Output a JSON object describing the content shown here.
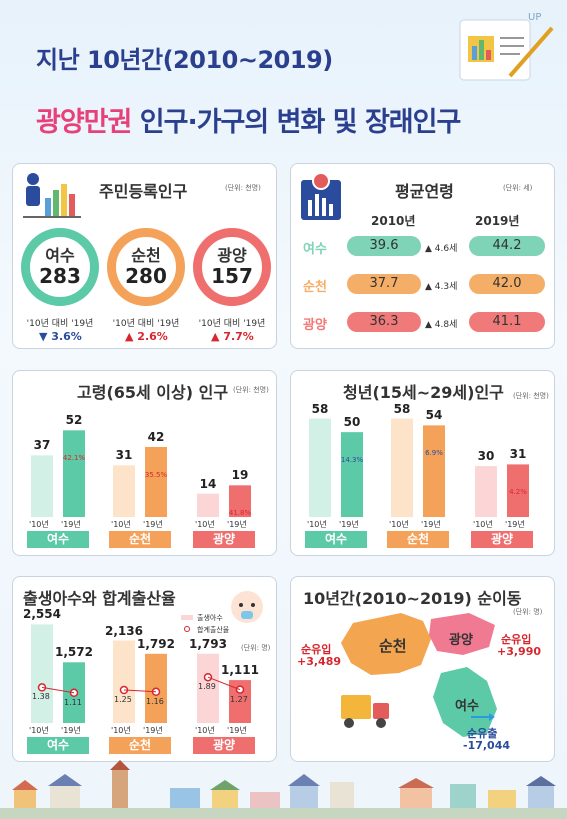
{
  "header": {
    "title_line1": "지난 10년간(2010~2019)",
    "title_line2_highlight": "광양만권",
    "title_line2_rest": " 인구·가구의 변화 및 장래인구"
  },
  "registered_population": {
    "title": "주민등록인구",
    "unit": "(단위: 천명)",
    "cities": [
      {
        "name": "여수",
        "value": "283",
        "compare": "'10년 대비 '19년",
        "change": "▼ 3.6%",
        "color": "#5cc9a7"
      },
      {
        "name": "순천",
        "value": "280",
        "compare": "'10년 대비 '19년",
        "change": "▲ 2.6%",
        "color": "#f4a259"
      },
      {
        "name": "광양",
        "value": "157",
        "compare": "'10년 대비 '19년",
        "change": "▲ 7.7%",
        "color": "#ef6f6f"
      }
    ]
  },
  "average_age": {
    "title": "평균연령",
    "unit": "(단위: 세)",
    "year1": "2010년",
    "year2": "2019년",
    "rows": [
      {
        "name": "여수",
        "v2010": "39.6",
        "change": "▲ 4.6세",
        "v2019": "44.2",
        "color": "#7fd3b6"
      },
      {
        "name": "순천",
        "v2010": "37.7",
        "change": "▲ 4.3세",
        "v2019": "42.0",
        "color": "#f5ae67"
      },
      {
        "name": "광양",
        "v2010": "36.3",
        "change": "▲ 4.8세",
        "v2019": "41.1",
        "color": "#f07a7a"
      }
    ]
  },
  "chart_data": [
    {
      "type": "bar",
      "title": "고령(65세 이상) 인구",
      "unit": "(단위: 천명)",
      "categories": [
        "여수",
        "순천",
        "광양"
      ],
      "series": [
        {
          "name": "'10년",
          "values": [
            37,
            31,
            14
          ]
        },
        {
          "name": "'19년",
          "values": [
            52,
            42,
            19
          ]
        }
      ],
      "changes": [
        "42.1%",
        "35.5%",
        "41.8%"
      ],
      "ticks": [
        "'10년",
        "'19년"
      ],
      "colors": [
        "#5cc9a7",
        "#f4a259",
        "#ef6f6f"
      ]
    },
    {
      "type": "bar",
      "title": "청년(15세~29세)인구",
      "unit": "(단위: 천명)",
      "categories": [
        "여수",
        "순천",
        "광양"
      ],
      "series": [
        {
          "name": "'10년",
          "values": [
            58,
            58,
            30
          ]
        },
        {
          "name": "'19년",
          "values": [
            50,
            54,
            31
          ]
        }
      ],
      "changes": [
        "14.3%",
        "6.9%",
        "4.2%"
      ],
      "ticks": [
        "'10년",
        "'19년"
      ],
      "colors": [
        "#5cc9a7",
        "#f4a259",
        "#ef6f6f"
      ]
    },
    {
      "type": "bar",
      "title": "출생아수와 합계출산율",
      "unit": "(단위: 명)",
      "legend": [
        "출생아수",
        "합계출산율"
      ],
      "categories": [
        "여수",
        "순천",
        "광양"
      ],
      "series": [
        {
          "name": "출생아수 '10년",
          "values": [
            2554,
            2136,
            1793
          ]
        },
        {
          "name": "출생아수 '19년",
          "values": [
            1572,
            1792,
            1111
          ]
        }
      ],
      "rates": [
        [
          "1.38",
          "1.11"
        ],
        [
          "1.25",
          "1.16"
        ],
        [
          "1.89",
          "1.27"
        ]
      ],
      "labels": [
        [
          "2,554",
          "1,572"
        ],
        [
          "2,136",
          "1,792"
        ],
        [
          "1,793",
          "1,111"
        ]
      ],
      "ticks": [
        "'10년",
        "'19년"
      ],
      "colors": [
        "#5cc9a7",
        "#f4a259",
        "#ef6f6f"
      ]
    }
  ],
  "migration": {
    "title": "10년간(2010~2019) 순이동",
    "unit": "(단위: 명)",
    "suncheon": {
      "name": "순천",
      "label": "순유입",
      "value": "+3,489"
    },
    "gwangyang": {
      "name": "광양",
      "label": "순유입",
      "value": "+3,990"
    },
    "yeosu": {
      "name": "여수",
      "label": "순유출",
      "value": "-17,044"
    }
  }
}
